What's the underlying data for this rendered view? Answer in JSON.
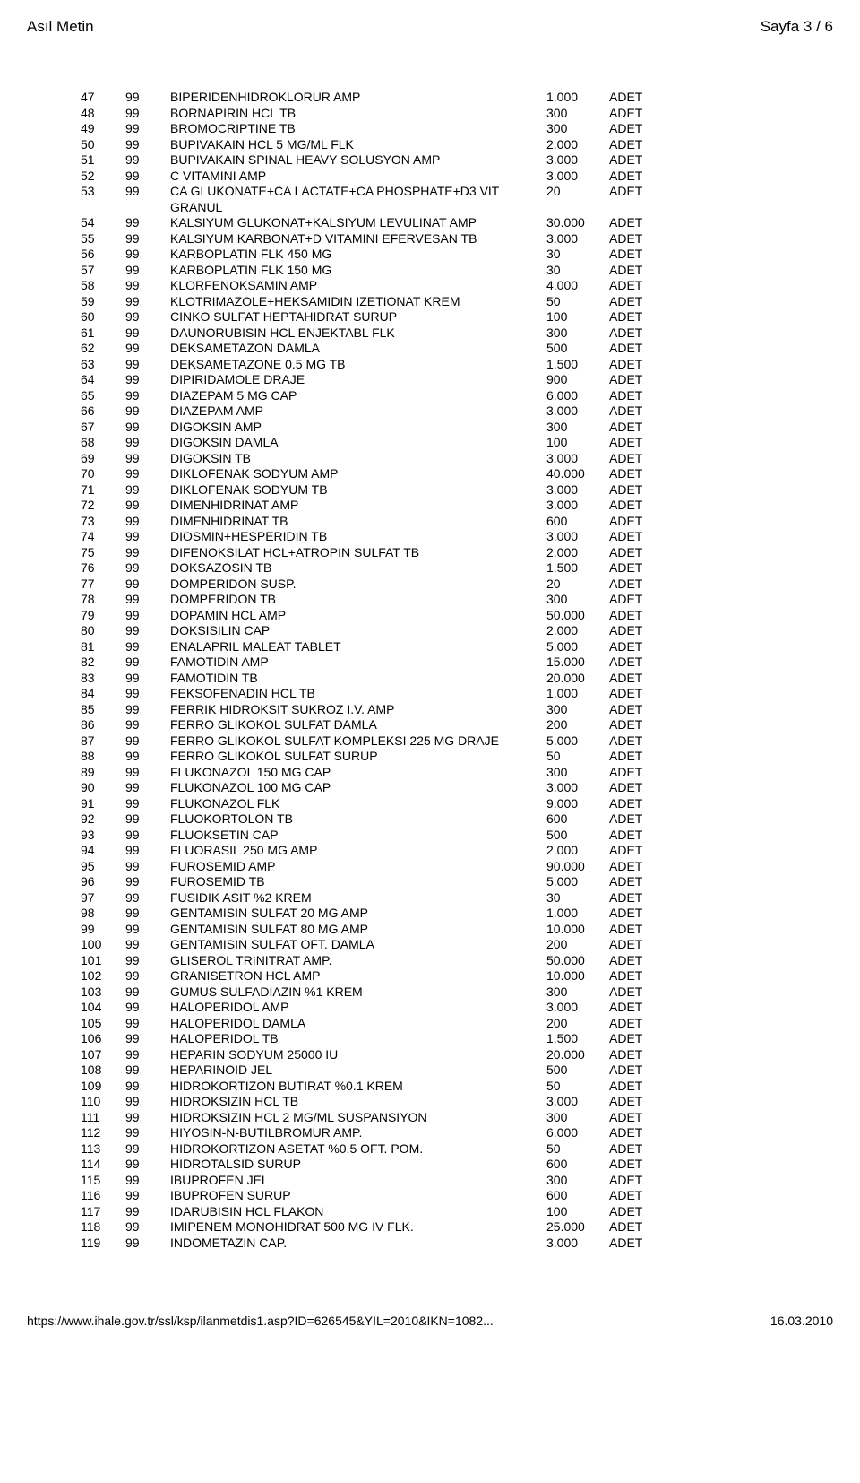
{
  "header": {
    "left": "Asıl Metin",
    "right": "Sayfa 3 / 6"
  },
  "footer": {
    "left": "https://www.ihale.gov.tr/ssl/ksp/ilanmetdis1.asp?ID=626545&YIL=2010&IKN=1082...",
    "right": "16.03.2010"
  },
  "table": {
    "rows": [
      {
        "a": "47",
        "b": "99",
        "c": "BIPERIDENHIDROKLORUR AMP",
        "d": "1.000",
        "e": "ADET"
      },
      {
        "a": "48",
        "b": "99",
        "c": "BORNAPIRIN HCL TB",
        "d": "300",
        "e": "ADET"
      },
      {
        "a": "49",
        "b": "99",
        "c": "BROMOCRIPTINE TB",
        "d": "300",
        "e": "ADET"
      },
      {
        "a": "50",
        "b": "99",
        "c": "BUPIVAKAIN HCL 5 MG/ML FLK",
        "d": "2.000",
        "e": "ADET"
      },
      {
        "a": "51",
        "b": "99",
        "c": "BUPIVAKAIN SPINAL HEAVY SOLUSYON AMP",
        "d": "3.000",
        "e": "ADET"
      },
      {
        "a": "52",
        "b": "99",
        "c": "C VITAMINI AMP",
        "d": "3.000",
        "e": "ADET"
      },
      {
        "a": "53",
        "b": "99",
        "c": "CA GLUKONATE+CA LACTATE+CA PHOSPHATE+D3 VIT GRANUL",
        "d": "20",
        "e": "ADET"
      },
      {
        "a": "54",
        "b": "99",
        "c": "KALSIYUM GLUKONAT+KALSIYUM LEVULINAT AMP",
        "d": "30.000",
        "e": "ADET"
      },
      {
        "a": "55",
        "b": "99",
        "c": "KALSIYUM KARBONAT+D VITAMINI EFERVESAN TB",
        "d": "3.000",
        "e": "ADET"
      },
      {
        "a": "56",
        "b": "99",
        "c": "KARBOPLATIN FLK 450 MG",
        "d": "30",
        "e": "ADET"
      },
      {
        "a": "57",
        "b": "99",
        "c": "KARBOPLATIN FLK 150 MG",
        "d": "30",
        "e": "ADET"
      },
      {
        "a": "58",
        "b": "99",
        "c": "KLORFENOKSAMIN AMP",
        "d": "4.000",
        "e": "ADET"
      },
      {
        "a": "59",
        "b": "99",
        "c": "KLOTRIMAZOLE+HEKSAMIDIN IZETIONAT KREM",
        "d": "50",
        "e": "ADET"
      },
      {
        "a": "60",
        "b": "99",
        "c": "CINKO SULFAT HEPTAHIDRAT SURUP",
        "d": "100",
        "e": "ADET"
      },
      {
        "a": "61",
        "b": "99",
        "c": "DAUNORUBISIN HCL ENJEKTABL FLK",
        "d": "300",
        "e": "ADET"
      },
      {
        "a": "62",
        "b": "99",
        "c": "DEKSAMETAZON DAMLA",
        "d": "500",
        "e": "ADET"
      },
      {
        "a": "63",
        "b": "99",
        "c": "DEKSAMETAZONE 0.5 MG TB",
        "d": "1.500",
        "e": "ADET"
      },
      {
        "a": "64",
        "b": "99",
        "c": "DIPIRIDAMOLE DRAJE",
        "d": "900",
        "e": "ADET"
      },
      {
        "a": "65",
        "b": "99",
        "c": "DIAZEPAM 5 MG CAP",
        "d": "6.000",
        "e": "ADET"
      },
      {
        "a": "66",
        "b": "99",
        "c": "DIAZEPAM AMP",
        "d": "3.000",
        "e": "ADET"
      },
      {
        "a": "67",
        "b": "99",
        "c": "DIGOKSIN AMP",
        "d": "300",
        "e": "ADET"
      },
      {
        "a": "68",
        "b": "99",
        "c": "DIGOKSIN DAMLA",
        "d": "100",
        "e": "ADET"
      },
      {
        "a": "69",
        "b": "99",
        "c": "DIGOKSIN TB",
        "d": "3.000",
        "e": "ADET"
      },
      {
        "a": "70",
        "b": "99",
        "c": "DIKLOFENAK SODYUM AMP",
        "d": "40.000",
        "e": "ADET"
      },
      {
        "a": "71",
        "b": "99",
        "c": "DIKLOFENAK SODYUM TB",
        "d": "3.000",
        "e": "ADET"
      },
      {
        "a": "72",
        "b": "99",
        "c": "DIMENHIDRINAT AMP",
        "d": "3.000",
        "e": "ADET"
      },
      {
        "a": "73",
        "b": "99",
        "c": "DIMENHIDRINAT TB",
        "d": "600",
        "e": "ADET"
      },
      {
        "a": "74",
        "b": "99",
        "c": "DIOSMIN+HESPERIDIN TB",
        "d": "3.000",
        "e": "ADET"
      },
      {
        "a": "75",
        "b": "99",
        "c": "DIFENOKSILAT HCL+ATROPIN SULFAT TB",
        "d": "2.000",
        "e": "ADET"
      },
      {
        "a": "76",
        "b": "99",
        "c": "DOKSAZOSIN TB",
        "d": "1.500",
        "e": "ADET"
      },
      {
        "a": "77",
        "b": "99",
        "c": "DOMPERIDON SUSP.",
        "d": "20",
        "e": "ADET"
      },
      {
        "a": "78",
        "b": "99",
        "c": "DOMPERIDON TB",
        "d": "300",
        "e": "ADET"
      },
      {
        "a": "79",
        "b": "99",
        "c": "DOPAMIN HCL AMP",
        "d": "50.000",
        "e": "ADET"
      },
      {
        "a": "80",
        "b": "99",
        "c": "DOKSISILIN CAP",
        "d": "2.000",
        "e": "ADET"
      },
      {
        "a": "81",
        "b": "99",
        "c": "ENALAPRIL MALEAT TABLET",
        "d": "5.000",
        "e": "ADET"
      },
      {
        "a": "82",
        "b": "99",
        "c": "FAMOTIDIN AMP",
        "d": "15.000",
        "e": "ADET"
      },
      {
        "a": "83",
        "b": "99",
        "c": "FAMOTIDIN TB",
        "d": "20.000",
        "e": "ADET"
      },
      {
        "a": "84",
        "b": "99",
        "c": "FEKSOFENADIN HCL TB",
        "d": "1.000",
        "e": "ADET"
      },
      {
        "a": "85",
        "b": "99",
        "c": "FERRIK HIDROKSIT SUKROZ I.V. AMP",
        "d": "300",
        "e": "ADET"
      },
      {
        "a": "86",
        "b": "99",
        "c": "FERRO GLIKOKOL SULFAT DAMLA",
        "d": "200",
        "e": "ADET"
      },
      {
        "a": "87",
        "b": "99",
        "c": "FERRO GLIKOKOL SULFAT KOMPLEKSI 225 MG DRAJE",
        "d": "5.000",
        "e": "ADET"
      },
      {
        "a": "88",
        "b": "99",
        "c": "FERRO GLIKOKOL SULFAT SURUP",
        "d": "50",
        "e": "ADET"
      },
      {
        "a": "89",
        "b": "99",
        "c": "FLUKONAZOL 150 MG CAP",
        "d": "300",
        "e": "ADET"
      },
      {
        "a": "90",
        "b": "99",
        "c": "FLUKONAZOL 100 MG CAP",
        "d": "3.000",
        "e": "ADET"
      },
      {
        "a": "91",
        "b": "99",
        "c": "FLUKONAZOL FLK",
        "d": "9.000",
        "e": "ADET"
      },
      {
        "a": "92",
        "b": "99",
        "c": "FLUOKORTOLON TB",
        "d": "600",
        "e": "ADET"
      },
      {
        "a": "93",
        "b": "99",
        "c": "FLUOKSETIN CAP",
        "d": "500",
        "e": "ADET"
      },
      {
        "a": "94",
        "b": "99",
        "c": "FLUORASIL 250 MG AMP",
        "d": "2.000",
        "e": "ADET"
      },
      {
        "a": "95",
        "b": "99",
        "c": "FUROSEMID AMP",
        "d": "90.000",
        "e": "ADET"
      },
      {
        "a": "96",
        "b": "99",
        "c": "FUROSEMID TB",
        "d": "5.000",
        "e": "ADET"
      },
      {
        "a": "97",
        "b": "99",
        "c": "FUSIDIK ASIT %2 KREM",
        "d": "30",
        "e": "ADET"
      },
      {
        "a": "98",
        "b": "99",
        "c": "GENTAMISIN SULFAT 20 MG AMP",
        "d": "1.000",
        "e": "ADET"
      },
      {
        "a": "99",
        "b": "99",
        "c": "GENTAMISIN SULFAT 80 MG AMP",
        "d": "10.000",
        "e": "ADET"
      },
      {
        "a": "100",
        "b": "99",
        "c": "GENTAMISIN SULFAT OFT. DAMLA",
        "d": "200",
        "e": "ADET"
      },
      {
        "a": "101",
        "b": "99",
        "c": "GLISEROL TRINITRAT AMP.",
        "d": "50.000",
        "e": "ADET"
      },
      {
        "a": "102",
        "b": "99",
        "c": "GRANISETRON HCL AMP",
        "d": "10.000",
        "e": "ADET"
      },
      {
        "a": "103",
        "b": "99",
        "c": "GUMUS SULFADIAZIN %1 KREM",
        "d": "300",
        "e": "ADET"
      },
      {
        "a": "104",
        "b": "99",
        "c": "HALOPERIDOL AMP",
        "d": "3.000",
        "e": "ADET"
      },
      {
        "a": "105",
        "b": "99",
        "c": "HALOPERIDOL DAMLA",
        "d": "200",
        "e": "ADET"
      },
      {
        "a": "106",
        "b": "99",
        "c": "HALOPERIDOL TB",
        "d": "1.500",
        "e": "ADET"
      },
      {
        "a": "107",
        "b": "99",
        "c": "HEPARIN SODYUM 25000 IU",
        "d": "20.000",
        "e": "ADET"
      },
      {
        "a": "108",
        "b": "99",
        "c": "HEPARINOID JEL",
        "d": "500",
        "e": "ADET"
      },
      {
        "a": "109",
        "b": "99",
        "c": "HIDROKORTIZON BUTIRAT %0.1 KREM",
        "d": "50",
        "e": "ADET"
      },
      {
        "a": "110",
        "b": "99",
        "c": "HIDROKSIZIN HCL TB",
        "d": "3.000",
        "e": "ADET"
      },
      {
        "a": "111",
        "b": "99",
        "c": "HIDROKSIZIN HCL 2 MG/ML SUSPANSIYON",
        "d": "300",
        "e": "ADET"
      },
      {
        "a": "112",
        "b": "99",
        "c": "HIYOSIN-N-BUTILBROMUR AMP.",
        "d": "6.000",
        "e": "ADET"
      },
      {
        "a": "113",
        "b": "99",
        "c": "HIDROKORTIZON ASETAT %0.5 OFT. POM.",
        "d": "50",
        "e": "ADET"
      },
      {
        "a": "114",
        "b": "99",
        "c": "HIDROTALSID SURUP",
        "d": "600",
        "e": "ADET"
      },
      {
        "a": "115",
        "b": "99",
        "c": "IBUPROFEN JEL",
        "d": "300",
        "e": "ADET"
      },
      {
        "a": "116",
        "b": "99",
        "c": "IBUPROFEN SURUP",
        "d": "600",
        "e": "ADET"
      },
      {
        "a": "117",
        "b": "99",
        "c": "IDARUBISIN HCL FLAKON",
        "d": "100",
        "e": "ADET"
      },
      {
        "a": "118",
        "b": "99",
        "c": "IMIPENEM MONOHIDRAT 500 MG IV FLK.",
        "d": "25.000",
        "e": "ADET"
      },
      {
        "a": "119",
        "b": "99",
        "c": "INDOMETAZIN CAP.",
        "d": "3.000",
        "e": "ADET"
      }
    ]
  }
}
